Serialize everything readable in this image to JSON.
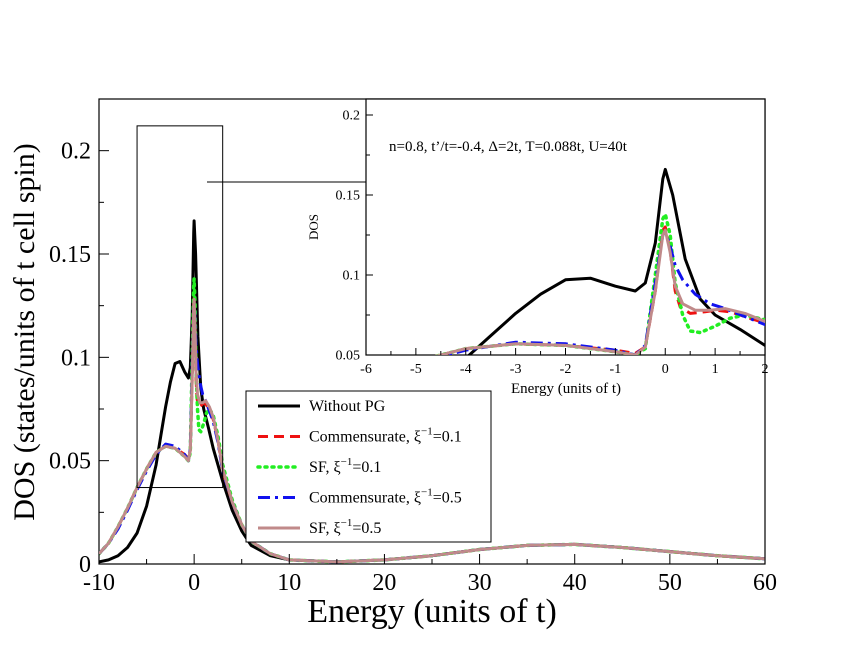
{
  "chart_data": [
    {
      "id": "main",
      "type": "line",
      "title": "",
      "xlabel": "Energy (units of t)",
      "ylabel": "DOS (states/units of t cell spin)",
      "xlim": [
        -10,
        60
      ],
      "ylim": [
        0,
        0.225
      ],
      "xticks": [
        -10,
        0,
        10,
        20,
        30,
        40,
        50,
        60
      ],
      "xtick_labels": [
        "-10",
        "0",
        "10",
        "20",
        "30",
        "40",
        "50",
        "60"
      ],
      "yticks": [
        0,
        0.05,
        0.1,
        0.15,
        0.2
      ],
      "ytick_labels": [
        "0",
        "0.05",
        "0.1",
        "0.15",
        "0.2"
      ],
      "legend_position": "bottom-center",
      "series": [
        {
          "name": "Without PG",
          "label_base": "Without PG",
          "label_sup": "",
          "label_tail": "",
          "color": "#000000",
          "dash": "",
          "width": 3,
          "points": [
            [
              -10,
              0.001
            ],
            [
              -9,
              0.002
            ],
            [
              -8,
              0.004
            ],
            [
              -7,
              0.008
            ],
            [
              -6,
              0.015
            ],
            [
              -5,
              0.028
            ],
            [
              -4,
              0.048
            ],
            [
              -3.5,
              0.062
            ],
            [
              -3,
              0.076
            ],
            [
              -2.5,
              0.088
            ],
            [
              -2,
              0.097
            ],
            [
              -1.5,
              0.098
            ],
            [
              -1,
              0.093
            ],
            [
              -0.6,
              0.09
            ],
            [
              -0.4,
              0.095
            ],
            [
              -0.2,
              0.12
            ],
            [
              -0.05,
              0.16
            ],
            [
              0,
              0.166
            ],
            [
              0.15,
              0.15
            ],
            [
              0.4,
              0.11
            ],
            [
              0.7,
              0.085
            ],
            [
              1,
              0.075
            ],
            [
              1.5,
              0.066
            ],
            [
              2,
              0.056
            ],
            [
              3,
              0.04
            ],
            [
              4,
              0.026
            ],
            [
              5,
              0.016
            ],
            [
              6,
              0.009
            ],
            [
              8,
              0.004
            ],
            [
              10,
              0.002
            ],
            [
              15,
              0.001
            ],
            [
              20,
              0.002
            ],
            [
              25,
              0.004
            ],
            [
              30,
              0.007
            ],
            [
              35,
              0.009
            ],
            [
              40,
              0.0095
            ],
            [
              45,
              0.008
            ],
            [
              50,
              0.006
            ],
            [
              55,
              0.004
            ],
            [
              60,
              0.0025
            ]
          ]
        },
        {
          "name": "Commensurate, ξ⁻¹=0.1",
          "label_base": "Commensurate, ξ",
          "label_sup": "−1",
          "label_tail": "=0.1",
          "color": "#ee1111",
          "dash": "10,6",
          "width": 3,
          "points": [
            [
              -10,
              0.005
            ],
            [
              -9,
              0.01
            ],
            [
              -8,
              0.018
            ],
            [
              -7,
              0.027
            ],
            [
              -6,
              0.037
            ],
            [
              -5,
              0.046
            ],
            [
              -4,
              0.054
            ],
            [
              -3,
              0.057
            ],
            [
              -2,
              0.056
            ],
            [
              -1,
              0.053
            ],
            [
              -0.6,
              0.051
            ],
            [
              -0.4,
              0.055
            ],
            [
              -0.2,
              0.09
            ],
            [
              -0.05,
              0.128
            ],
            [
              0,
              0.13
            ],
            [
              0.1,
              0.115
            ],
            [
              0.2,
              0.09
            ],
            [
              0.3,
              0.08
            ],
            [
              0.5,
              0.076
            ],
            [
              0.8,
              0.077
            ],
            [
              1,
              0.078
            ],
            [
              1.3,
              0.077
            ],
            [
              1.6,
              0.074
            ],
            [
              2,
              0.07
            ],
            [
              2.5,
              0.06
            ],
            [
              3,
              0.045
            ],
            [
              4,
              0.03
            ],
            [
              5,
              0.019
            ],
            [
              6,
              0.011
            ],
            [
              8,
              0.005
            ],
            [
              10,
              0.002
            ],
            [
              15,
              0.001
            ],
            [
              20,
              0.002
            ],
            [
              25,
              0.004
            ],
            [
              30,
              0.007
            ],
            [
              35,
              0.009
            ],
            [
              40,
              0.0095
            ],
            [
              45,
              0.008
            ],
            [
              50,
              0.006
            ],
            [
              55,
              0.004
            ],
            [
              60,
              0.0025
            ]
          ]
        },
        {
          "name": "SF, ξ⁻¹=0.1",
          "label_base": "SF, ξ",
          "label_sup": "−1",
          "label_tail": "=0.1",
          "color": "#22ee22",
          "dash": "2,5",
          "width": 3.5,
          "points": [
            [
              -10,
              0.005
            ],
            [
              -9,
              0.01
            ],
            [
              -8,
              0.018
            ],
            [
              -7,
              0.027
            ],
            [
              -6,
              0.037
            ],
            [
              -5,
              0.046
            ],
            [
              -4,
              0.054
            ],
            [
              -3,
              0.057
            ],
            [
              -2,
              0.056
            ],
            [
              -1,
              0.052
            ],
            [
              -0.6,
              0.05
            ],
            [
              -0.4,
              0.054
            ],
            [
              -0.2,
              0.1
            ],
            [
              -0.05,
              0.135
            ],
            [
              0,
              0.138
            ],
            [
              0.1,
              0.125
            ],
            [
              0.2,
              0.095
            ],
            [
              0.35,
              0.075
            ],
            [
              0.5,
              0.065
            ],
            [
              0.7,
              0.064
            ],
            [
              1,
              0.068
            ],
            [
              1.3,
              0.073
            ],
            [
              1.6,
              0.075
            ],
            [
              2,
              0.072
            ],
            [
              2.5,
              0.062
            ],
            [
              3,
              0.048
            ],
            [
              4,
              0.031
            ],
            [
              5,
              0.019
            ],
            [
              6,
              0.011
            ],
            [
              8,
              0.005
            ],
            [
              10,
              0.002
            ],
            [
              15,
              0.001
            ],
            [
              20,
              0.002
            ],
            [
              25,
              0.004
            ],
            [
              30,
              0.007
            ],
            [
              35,
              0.009
            ],
            [
              40,
              0.0095
            ],
            [
              45,
              0.008
            ],
            [
              50,
              0.006
            ],
            [
              55,
              0.004
            ],
            [
              60,
              0.0025
            ]
          ]
        },
        {
          "name": "Commensurate, ξ⁻¹=0.5",
          "label_base": "Commensurate, ξ",
          "label_sup": "−1",
          "label_tail": "=0.5",
          "color": "#1111ee",
          "dash": "12,5,3,5",
          "width": 3,
          "points": [
            [
              -10,
              0.005
            ],
            [
              -9,
              0.01
            ],
            [
              -8,
              0.017
            ],
            [
              -7,
              0.026
            ],
            [
              -6,
              0.036
            ],
            [
              -5,
              0.045
            ],
            [
              -4,
              0.053
            ],
            [
              -3,
              0.058
            ],
            [
              -2,
              0.057
            ],
            [
              -1,
              0.053
            ],
            [
              -0.6,
              0.05
            ],
            [
              -0.4,
              0.056
            ],
            [
              -0.2,
              0.095
            ],
            [
              -0.05,
              0.125
            ],
            [
              0,
              0.127
            ],
            [
              0.1,
              0.118
            ],
            [
              0.2,
              0.106
            ],
            [
              0.35,
              0.097
            ],
            [
              0.6,
              0.088
            ],
            [
              0.9,
              0.082
            ],
            [
              1.2,
              0.079
            ],
            [
              1.6,
              0.074
            ],
            [
              2,
              0.069
            ],
            [
              2.5,
              0.059
            ],
            [
              3,
              0.045
            ],
            [
              4,
              0.03
            ],
            [
              5,
              0.019
            ],
            [
              6,
              0.011
            ],
            [
              8,
              0.005
            ],
            [
              10,
              0.002
            ],
            [
              15,
              0.001
            ],
            [
              20,
              0.002
            ],
            [
              25,
              0.004
            ],
            [
              30,
              0.007
            ],
            [
              35,
              0.009
            ],
            [
              40,
              0.0095
            ],
            [
              45,
              0.008
            ],
            [
              50,
              0.006
            ],
            [
              55,
              0.004
            ],
            [
              60,
              0.0025
            ]
          ]
        },
        {
          "name": "SF, ξ⁻¹=0.5",
          "label_base": "SF, ξ",
          "label_sup": "−1",
          "label_tail": "=0.5",
          "color": "#c08a8a",
          "dash": "",
          "width": 3,
          "points": [
            [
              -10,
              0.005
            ],
            [
              -9,
              0.01
            ],
            [
              -8,
              0.018
            ],
            [
              -7,
              0.027
            ],
            [
              -6,
              0.037
            ],
            [
              -5,
              0.046
            ],
            [
              -4,
              0.054
            ],
            [
              -3,
              0.057
            ],
            [
              -2,
              0.056
            ],
            [
              -1,
              0.052
            ],
            [
              -0.6,
              0.05
            ],
            [
              -0.4,
              0.055
            ],
            [
              -0.2,
              0.09
            ],
            [
              -0.05,
              0.125
            ],
            [
              0,
              0.128
            ],
            [
              0.1,
              0.114
            ],
            [
              0.2,
              0.093
            ],
            [
              0.35,
              0.082
            ],
            [
              0.6,
              0.078
            ],
            [
              0.9,
              0.078
            ],
            [
              1.2,
              0.079
            ],
            [
              1.6,
              0.076
            ],
            [
              2,
              0.071
            ],
            [
              2.5,
              0.06
            ],
            [
              3,
              0.046
            ],
            [
              4,
              0.03
            ],
            [
              5,
              0.019
            ],
            [
              6,
              0.011
            ],
            [
              8,
              0.005
            ],
            [
              10,
              0.002
            ],
            [
              15,
              0.001
            ],
            [
              20,
              0.002
            ],
            [
              25,
              0.004
            ],
            [
              30,
              0.007
            ],
            [
              35,
              0.009
            ],
            [
              40,
              0.0095
            ],
            [
              45,
              0.008
            ],
            [
              50,
              0.006
            ],
            [
              55,
              0.004
            ],
            [
              60,
              0.0025
            ]
          ]
        }
      ]
    },
    {
      "id": "inset",
      "type": "line",
      "annotation": "n=0.8, t’/t=-0.4, Δ=2t, T=0.088t, U=40t",
      "xlabel": "Energy (units of t)",
      "ylabel": "DOS",
      "xlim": [
        -6,
        2
      ],
      "ylim": [
        0.05,
        0.21
      ],
      "xticks": [
        -6,
        -5,
        -4,
        -3,
        -2,
        -1,
        0,
        1,
        2
      ],
      "xtick_labels": [
        "-6",
        "-5",
        "-4",
        "-3",
        "-2",
        "-1",
        "0",
        "1",
        "2"
      ],
      "yticks": [
        0.05,
        0.1,
        0.15,
        0.2
      ],
      "ytick_labels": [
        "0.05",
        "0.1",
        "0.15",
        "0.2"
      ],
      "zoom_region": {
        "xlim": [
          -6,
          3
        ],
        "ylim": [
          0.037,
          0.212
        ]
      },
      "series_ref": "main"
    }
  ]
}
